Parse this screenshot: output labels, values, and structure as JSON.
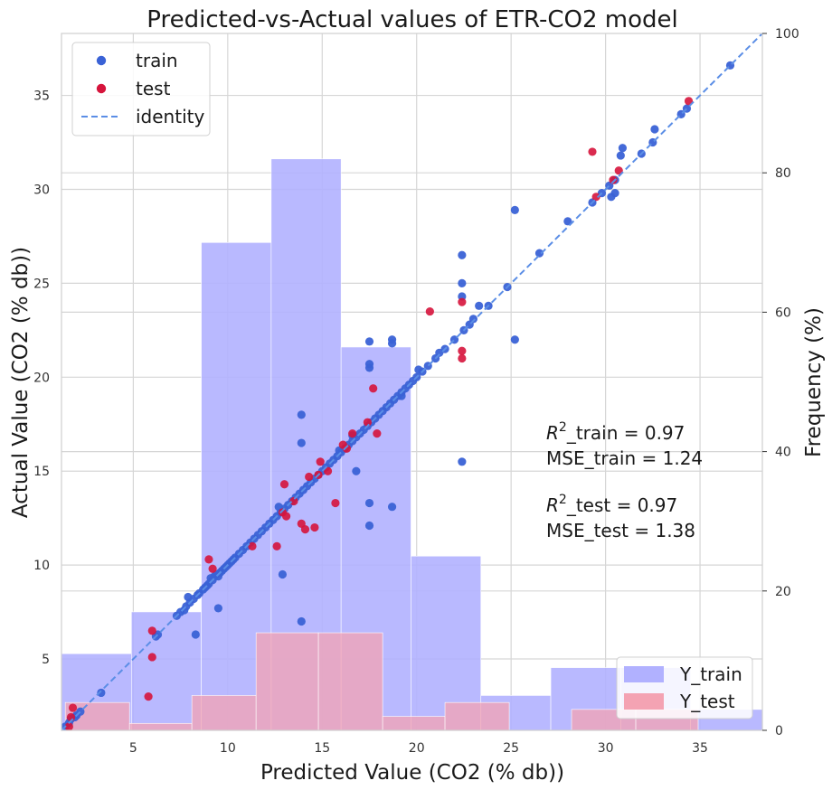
{
  "chart_data": {
    "type": "scatter",
    "title": "Predicted-vs-Actual values of ETR-CO2 model",
    "xlabel": "Predicted Value (CO2 (% db))",
    "ylabel": "Actual Value (CO2 (% db))",
    "y2label": "Frequency (%)",
    "xlim": [
      1.2,
      38.3
    ],
    "ylim": [
      1.2,
      38.3
    ],
    "y2lim": [
      0,
      100
    ],
    "xticks": [
      5,
      10,
      15,
      20,
      25,
      30,
      35
    ],
    "yticks": [
      5,
      10,
      15,
      20,
      25,
      30,
      35
    ],
    "y2ticks": [
      0,
      20,
      40,
      60,
      80,
      100
    ],
    "grid": true,
    "legend_top": {
      "position": "top-left",
      "items": [
        {
          "label": "train",
          "kind": "marker",
          "color": "#3a62d6"
        },
        {
          "label": "test",
          "kind": "marker",
          "color": "#d6143c"
        },
        {
          "label": "identity",
          "kind": "dashed",
          "color": "#5b8ee6"
        }
      ]
    },
    "legend_bottom": {
      "position": "bottom-right",
      "items": [
        {
          "label": "Y_train",
          "color": "#b1b1ff"
        },
        {
          "label": "Y_test",
          "color": "#f4a3b3"
        }
      ]
    },
    "annotations": [
      {
        "text": "_train = 0.97",
        "prefix": "R",
        "sup": "2"
      },
      {
        "text": "MSE_train = 1.24"
      },
      {
        "text": "_test = 0.97",
        "prefix": "R",
        "sup": "2"
      },
      {
        "text": "MSE_test = 1.38"
      }
    ],
    "colors": {
      "train": "#3a62d6",
      "test": "#d6143c",
      "identity": "#5b8ee6",
      "hist_train": "#b1b1ff",
      "hist_test": "#f4a3b3"
    },
    "hist_train": [
      {
        "x0": 1.2,
        "x1": 4.9,
        "freq": 11
      },
      {
        "x0": 4.9,
        "x1": 8.6,
        "freq": 17
      },
      {
        "x0": 8.6,
        "x1": 12.3,
        "freq": 70
      },
      {
        "x0": 12.3,
        "x1": 16.0,
        "freq": 82
      },
      {
        "x0": 16.0,
        "x1": 19.7,
        "freq": 55
      },
      {
        "x0": 19.7,
        "x1": 23.4,
        "freq": 25
      },
      {
        "x0": 23.4,
        "x1": 27.1,
        "freq": 5
      },
      {
        "x0": 27.1,
        "x1": 30.8,
        "freq": 9
      },
      {
        "x0": 30.8,
        "x1": 34.5,
        "freq": 9
      },
      {
        "x0": 34.5,
        "x1": 38.3,
        "freq": 3
      }
    ],
    "hist_test": [
      {
        "x0": 1.4,
        "x1": 4.8,
        "freq": 4
      },
      {
        "x0": 4.8,
        "x1": 8.1,
        "freq": 1
      },
      {
        "x0": 8.1,
        "x1": 11.5,
        "freq": 5
      },
      {
        "x0": 11.5,
        "x1": 14.8,
        "freq": 14
      },
      {
        "x0": 14.8,
        "x1": 18.2,
        "freq": 14
      },
      {
        "x0": 18.2,
        "x1": 21.5,
        "freq": 2
      },
      {
        "x0": 21.5,
        "x1": 24.9,
        "freq": 4
      },
      {
        "x0": 24.9,
        "x1": 28.2,
        "freq": 0
      },
      {
        "x0": 28.2,
        "x1": 31.6,
        "freq": 3
      },
      {
        "x0": 31.6,
        "x1": 34.9,
        "freq": 3
      }
    ],
    "train": [
      [
        1.4,
        1.4
      ],
      [
        1.6,
        1.6
      ],
      [
        1.7,
        1.8
      ],
      [
        1.9,
        1.9
      ],
      [
        2.0,
        2.0
      ],
      [
        2.2,
        2.2
      ],
      [
        3.3,
        3.2
      ],
      [
        6.2,
        6.2
      ],
      [
        6.3,
        6.3
      ],
      [
        7.3,
        7.3
      ],
      [
        7.5,
        7.5
      ],
      [
        7.7,
        7.6
      ],
      [
        7.8,
        7.8
      ],
      [
        7.9,
        8.3
      ],
      [
        8.0,
        8.0
      ],
      [
        8.2,
        8.2
      ],
      [
        8.4,
        8.4
      ],
      [
        8.5,
        8.5
      ],
      [
        8.7,
        8.7
      ],
      [
        8.8,
        8.8
      ],
      [
        8.9,
        8.9
      ],
      [
        9.0,
        9.0
      ],
      [
        9.1,
        9.3
      ],
      [
        9.2,
        9.2
      ],
      [
        9.3,
        9.4
      ],
      [
        9.4,
        9.5
      ],
      [
        9.5,
        9.4
      ],
      [
        9.6,
        9.6
      ],
      [
        9.7,
        9.7
      ],
      [
        9.8,
        9.8
      ],
      [
        9.9,
        9.9
      ],
      [
        10.0,
        10.0
      ],
      [
        10.1,
        10.1
      ],
      [
        10.2,
        10.2
      ],
      [
        10.3,
        10.3
      ],
      [
        10.4,
        10.4
      ],
      [
        10.6,
        10.6
      ],
      [
        10.8,
        10.8
      ],
      [
        11.0,
        11.0
      ],
      [
        11.2,
        11.2
      ],
      [
        11.4,
        11.4
      ],
      [
        11.6,
        11.6
      ],
      [
        11.8,
        11.8
      ],
      [
        12.0,
        12.0
      ],
      [
        12.2,
        12.2
      ],
      [
        12.4,
        12.4
      ],
      [
        12.6,
        12.6
      ],
      [
        12.8,
        12.8
      ],
      [
        13.0,
        13.0
      ],
      [
        13.2,
        13.2
      ],
      [
        13.4,
        13.4
      ],
      [
        13.6,
        13.6
      ],
      [
        13.8,
        13.8
      ],
      [
        14.0,
        14.0
      ],
      [
        14.2,
        14.2
      ],
      [
        14.4,
        14.4
      ],
      [
        14.6,
        14.6
      ],
      [
        14.8,
        14.8
      ],
      [
        15.0,
        15.0
      ],
      [
        15.2,
        15.2
      ],
      [
        15.4,
        15.4
      ],
      [
        15.6,
        15.6
      ],
      [
        15.8,
        15.8
      ],
      [
        16.0,
        16.0
      ],
      [
        16.2,
        16.2
      ],
      [
        16.4,
        16.4
      ],
      [
        16.6,
        16.6
      ],
      [
        16.8,
        16.8
      ],
      [
        17.0,
        17.0
      ],
      [
        17.2,
        17.2
      ],
      [
        17.4,
        17.4
      ],
      [
        17.6,
        17.6
      ],
      [
        17.8,
        17.8
      ],
      [
        18.0,
        18.0
      ],
      [
        18.2,
        18.2
      ],
      [
        18.4,
        18.4
      ],
      [
        18.6,
        18.6
      ],
      [
        18.8,
        18.8
      ],
      [
        19.0,
        19.0
      ],
      [
        19.2,
        19.2
      ],
      [
        19.4,
        19.4
      ],
      [
        19.6,
        19.6
      ],
      [
        19.8,
        19.8
      ],
      [
        20.0,
        20.0
      ],
      [
        20.3,
        20.3
      ],
      [
        20.6,
        20.6
      ],
      [
        21.0,
        21.0
      ],
      [
        21.5,
        21.5
      ],
      [
        22.0,
        22.0
      ],
      [
        22.5,
        22.5
      ],
      [
        22.8,
        22.8
      ],
      [
        23.3,
        23.8
      ],
      [
        23.8,
        23.8
      ],
      [
        24.8,
        24.8
      ],
      [
        26.5,
        26.6
      ],
      [
        28.0,
        28.3
      ],
      [
        29.3,
        29.3
      ],
      [
        29.8,
        29.8
      ],
      [
        30.2,
        30.2
      ],
      [
        30.5,
        30.5
      ],
      [
        30.8,
        31.8
      ],
      [
        30.9,
        32.2
      ],
      [
        31.9,
        31.9
      ],
      [
        32.5,
        32.5
      ],
      [
        32.6,
        33.2
      ],
      [
        34.0,
        34.0
      ],
      [
        34.3,
        34.3
      ],
      [
        36.6,
        36.6
      ],
      [
        8.3,
        6.3
      ],
      [
        9.5,
        7.7
      ],
      [
        12.9,
        9.5
      ],
      [
        13.9,
        7.0
      ],
      [
        13.9,
        18.0
      ],
      [
        13.9,
        16.5
      ],
      [
        17.5,
        20.7
      ],
      [
        17.5,
        20.5
      ],
      [
        17.5,
        13.3
      ],
      [
        17.5,
        12.1
      ],
      [
        17.5,
        21.9
      ],
      [
        18.7,
        22.0
      ],
      [
        18.7,
        21.8
      ],
      [
        18.7,
        13.1
      ],
      [
        16.8,
        15.0
      ],
      [
        22.4,
        26.5
      ],
      [
        22.4,
        25.0
      ],
      [
        22.4,
        24.3
      ],
      [
        22.4,
        15.5
      ],
      [
        25.2,
        28.9
      ],
      [
        25.2,
        22.0
      ],
      [
        30.3,
        29.6
      ],
      [
        30.5,
        29.8
      ],
      [
        19.2,
        19.0
      ],
      [
        20.1,
        20.4
      ],
      [
        21.2,
        21.3
      ],
      [
        23.0,
        23.1
      ],
      [
        12.7,
        13.1
      ],
      [
        15.9,
        16.1
      ],
      [
        16.6,
        16.9
      ]
    ],
    "test": [
      [
        1.6,
        1.4
      ],
      [
        1.7,
        1.9
      ],
      [
        1.8,
        2.4
      ],
      [
        5.8,
        3.0
      ],
      [
        6.0,
        5.1
      ],
      [
        6.0,
        6.5
      ],
      [
        9.0,
        10.3
      ],
      [
        9.2,
        9.8
      ],
      [
        11.3,
        11.0
      ],
      [
        12.6,
        11.0
      ],
      [
        12.9,
        12.8
      ],
      [
        13.1,
        12.6
      ],
      [
        13.5,
        13.4
      ],
      [
        13.9,
        12.2
      ],
      [
        14.1,
        11.9
      ],
      [
        14.3,
        14.7
      ],
      [
        14.6,
        12.0
      ],
      [
        14.9,
        15.5
      ],
      [
        15.3,
        15.0
      ],
      [
        15.7,
        13.3
      ],
      [
        16.1,
        16.4
      ],
      [
        16.6,
        17.0
      ],
      [
        17.7,
        19.4
      ],
      [
        17.9,
        17.0
      ],
      [
        13.0,
        14.3
      ],
      [
        14.8,
        14.8
      ],
      [
        16.3,
        16.2
      ],
      [
        17.4,
        17.6
      ],
      [
        20.7,
        23.5
      ],
      [
        22.4,
        24.0
      ],
      [
        22.4,
        21.4
      ],
      [
        22.4,
        21.0
      ],
      [
        29.3,
        32.0
      ],
      [
        29.5,
        29.6
      ],
      [
        30.4,
        30.5
      ],
      [
        30.7,
        31.0
      ],
      [
        34.4,
        34.7
      ]
    ]
  }
}
